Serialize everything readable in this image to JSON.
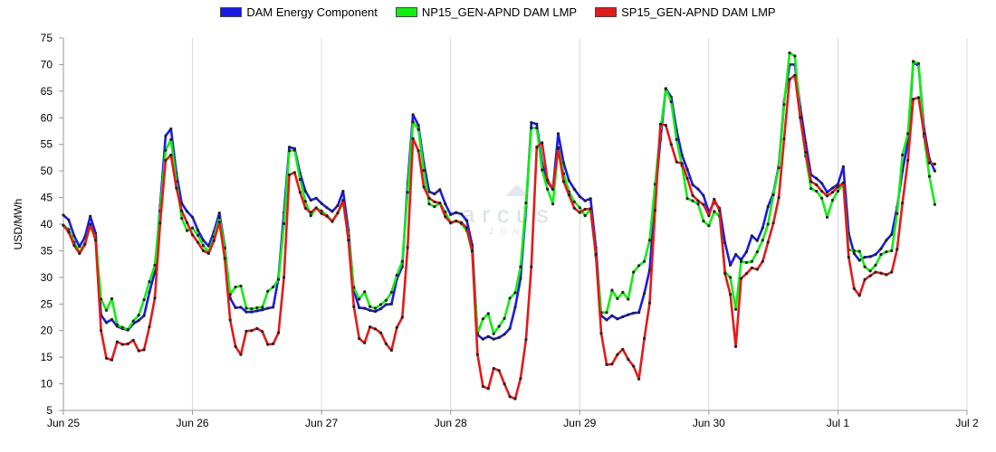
{
  "chart_data": {
    "type": "line",
    "title": "",
    "ylabel": "USD/MWh",
    "xlabel": "",
    "ylim": [
      5,
      75
    ],
    "yticks": [
      5,
      10,
      15,
      20,
      25,
      30,
      35,
      40,
      45,
      50,
      55,
      60,
      65,
      70,
      75
    ],
    "xticks": [
      "Jun 25",
      "Jun 26",
      "Jun 27",
      "Jun 28",
      "Jun 29",
      "Jun 30",
      "Jul 1",
      "Jul 2"
    ],
    "grid": true,
    "legend_position": "top-center",
    "watermark": {
      "text": "arcus",
      "sub": "ZONE"
    },
    "x_hours": [
      0,
      1,
      2,
      3,
      4,
      5,
      6,
      7,
      8,
      9,
      10,
      11,
      12,
      13,
      14,
      15,
      16,
      17,
      18,
      19,
      20,
      21,
      22,
      23,
      24,
      25,
      26,
      27,
      28,
      29,
      30,
      31,
      32,
      33,
      34,
      35,
      36,
      37,
      38,
      39,
      40,
      41,
      42,
      43,
      44,
      45,
      46,
      47,
      48,
      49,
      50,
      51,
      52,
      53,
      54,
      55,
      56,
      57,
      58,
      59,
      60,
      61,
      62,
      63,
      64,
      65,
      66,
      67,
      68,
      69,
      70,
      71,
      72,
      73,
      74,
      75,
      76,
      77,
      78,
      79,
      80,
      81,
      82,
      83,
      84,
      85,
      86,
      87,
      88,
      89,
      90,
      91,
      92,
      93,
      94,
      95,
      96,
      97,
      98,
      99,
      100,
      101,
      102,
      103,
      104,
      105,
      106,
      107,
      108,
      109,
      110,
      111,
      112,
      113,
      114,
      115,
      116,
      117,
      118,
      119,
      120,
      121,
      122,
      123,
      124,
      125,
      126,
      127,
      128,
      129,
      130,
      131,
      132,
      133,
      134,
      135,
      136,
      137,
      138,
      139,
      140,
      141,
      142,
      143,
      144,
      145,
      146,
      147,
      148,
      149,
      150,
      151,
      152,
      153,
      154,
      155,
      156,
      157,
      158,
      159,
      160,
      161,
      162,
      163,
      164,
      165,
      166,
      167
    ],
    "series": [
      {
        "name": "DAM Energy Component",
        "color": "#1a1ae6",
        "values": [
          41.7,
          40.8,
          37.8,
          35.8,
          37.6,
          41.5,
          38.3,
          22.9,
          21.5,
          22.1,
          20.8,
          20.4,
          20.1,
          21.3,
          21.9,
          22.8,
          27.2,
          31.0,
          43.5,
          56.6,
          57.9,
          49.6,
          43.9,
          42.4,
          41.3,
          38.9,
          37.0,
          35.9,
          38.6,
          42.1,
          35.9,
          26.1,
          24.3,
          24.4,
          23.5,
          23.5,
          23.7,
          23.9,
          24.2,
          24.4,
          30.0,
          42.2,
          54.5,
          54.2,
          49.6,
          46.2,
          44.5,
          44.9,
          43.9,
          43.1,
          42.4,
          43.5,
          46.2,
          38.9,
          27.5,
          24.3,
          24.2,
          23.8,
          23.6,
          24.1,
          24.9,
          25.0,
          29.7,
          32.0,
          47.6,
          60.6,
          58.6,
          51.5,
          46.1,
          45.7,
          46.5,
          43.8,
          41.8,
          42.2,
          41.9,
          40.7,
          36.1,
          19.2,
          18.4,
          18.9,
          18.4,
          18.7,
          19.3,
          20.4,
          24.4,
          29.8,
          43.1,
          59.1,
          58.8,
          51.4,
          48.0,
          46.5,
          57.0,
          51.5,
          48.2,
          46.6,
          45.2,
          44.4,
          44.8,
          35.6,
          22.8,
          22.0,
          22.8,
          22.2,
          22.6,
          23.0,
          23.3,
          23.4,
          27.0,
          31.4,
          45.2,
          55.9,
          65.5,
          63.9,
          57.7,
          53.0,
          50.3,
          47.4,
          46.6,
          45.4,
          42.2,
          44.2,
          43.0,
          36.5,
          32.3,
          34.3,
          33.3,
          34.8,
          37.8,
          36.9,
          39.3,
          43.3,
          45.8,
          51.0,
          63.0,
          70.0,
          70.0,
          62.0,
          55.3,
          49.3,
          48.6,
          47.7,
          46.0,
          46.8,
          47.5,
          50.8,
          38.3,
          34.5,
          33.2,
          33.8,
          33.9,
          34.3,
          35.4,
          37.0,
          38.1,
          43.2,
          50.0,
          55.5,
          70.4,
          69.8,
          58.0,
          52.3,
          50.0
        ]
      },
      {
        "name": "NP15_GEN-APND DAM LMP",
        "color": "#11ee11",
        "values": [
          39.8,
          39.0,
          36.6,
          34.7,
          36.4,
          39.6,
          37.5,
          25.9,
          23.8,
          26.0,
          21.1,
          20.6,
          20.2,
          21.8,
          22.9,
          25.8,
          29.2,
          32.3,
          42.5,
          53.9,
          55.9,
          48.0,
          41.1,
          38.8,
          39.3,
          37.9,
          36.0,
          34.7,
          37.6,
          41.2,
          35.5,
          26.8,
          28.2,
          28.4,
          24.2,
          24.1,
          24.3,
          24.4,
          27.4,
          28.2,
          29.6,
          40.1,
          53.8,
          53.9,
          48.4,
          44.3,
          41.6,
          43.0,
          42.5,
          41.6,
          40.6,
          42.1,
          44.1,
          37.8,
          28.1,
          25.9,
          27.3,
          24.5,
          24.2,
          24.9,
          25.7,
          27.2,
          30.4,
          33.0,
          46.0,
          59.2,
          57.8,
          50.1,
          43.8,
          43.3,
          44.0,
          42.3,
          40.2,
          40.6,
          40.1,
          38.8,
          34.8,
          19.5,
          22.2,
          23.2,
          19.4,
          20.8,
          22.3,
          26.1,
          27.1,
          32.0,
          44.0,
          58.1,
          58.1,
          50.2,
          46.6,
          43.8,
          54.4,
          49.5,
          46.1,
          44.2,
          43.1,
          41.6,
          42.8,
          34.0,
          23.4,
          23.4,
          27.6,
          26.0,
          27.2,
          25.9,
          31.0,
          32.2,
          33.0,
          37.0,
          47.5,
          57.5,
          65.4,
          63.0,
          55.9,
          51.0,
          44.8,
          44.4,
          43.8,
          40.6,
          39.7,
          42.4,
          41.5,
          31.0,
          30.0,
          24.0,
          33.0,
          32.8,
          33.0,
          34.8,
          37.0,
          40.0,
          45.5,
          50.6,
          62.5,
          72.2,
          71.6,
          60.2,
          52.8,
          46.7,
          46.2,
          44.9,
          41.3,
          44.5,
          46.2,
          47.6,
          35.2,
          35.0,
          34.9,
          32.0,
          31.2,
          32.3,
          34.3,
          34.8,
          35.0,
          42.0,
          53.0,
          57.0,
          70.6,
          70.2,
          56.5,
          49.0,
          43.7
        ]
      },
      {
        "name": "SP15_GEN-APND DAM LMP",
        "color": "#e31a1a",
        "values": [
          39.8,
          38.5,
          36.0,
          34.5,
          36.2,
          40.0,
          37.0,
          20.0,
          14.8,
          14.5,
          17.9,
          17.4,
          17.5,
          18.2,
          16.2,
          16.4,
          20.7,
          26.1,
          40.2,
          52.0,
          53.0,
          46.8,
          42.5,
          40.3,
          38.0,
          36.6,
          35.0,
          34.5,
          36.9,
          40.4,
          33.6,
          22.0,
          17.0,
          15.5,
          19.9,
          20.0,
          20.4,
          19.8,
          17.4,
          17.5,
          19.6,
          30.0,
          49.3,
          49.7,
          46.0,
          43.0,
          42.2,
          43.1,
          42.0,
          41.5,
          40.5,
          42.1,
          44.5,
          37.0,
          24.5,
          18.5,
          17.7,
          20.7,
          20.3,
          19.6,
          17.5,
          16.3,
          20.6,
          22.5,
          35.6,
          56.1,
          53.8,
          47.0,
          44.9,
          44.2,
          44.0,
          41.4,
          40.3,
          40.6,
          40.3,
          39.3,
          35.0,
          15.5,
          9.5,
          9.1,
          12.9,
          12.5,
          10.0,
          7.6,
          7.2,
          11.0,
          18.3,
          32.0,
          54.5,
          55.3,
          48.3,
          46.6,
          54.2,
          48.0,
          45.5,
          43.0,
          42.2,
          42.8,
          42.9,
          34.3,
          19.5,
          13.6,
          13.7,
          15.5,
          16.5,
          14.6,
          13.3,
          10.9,
          18.5,
          25.2,
          42.6,
          58.8,
          58.6,
          55.0,
          51.7,
          51.4,
          48.6,
          45.4,
          44.4,
          43.7,
          41.6,
          44.7,
          42.5,
          30.7,
          26.8,
          17.0,
          29.8,
          30.7,
          31.8,
          31.5,
          33.0,
          36.6,
          40.2,
          45.0,
          56.0,
          67.2,
          68.0,
          60.0,
          53.5,
          48.0,
          47.4,
          46.2,
          45.3,
          46.0,
          47.0,
          47.8,
          33.8,
          27.9,
          26.6,
          29.6,
          30.3,
          31.0,
          30.8,
          30.5,
          31.0,
          35.3,
          44.0,
          52.0,
          63.5,
          63.8,
          57.0,
          51.5,
          51.3
        ]
      }
    ]
  }
}
